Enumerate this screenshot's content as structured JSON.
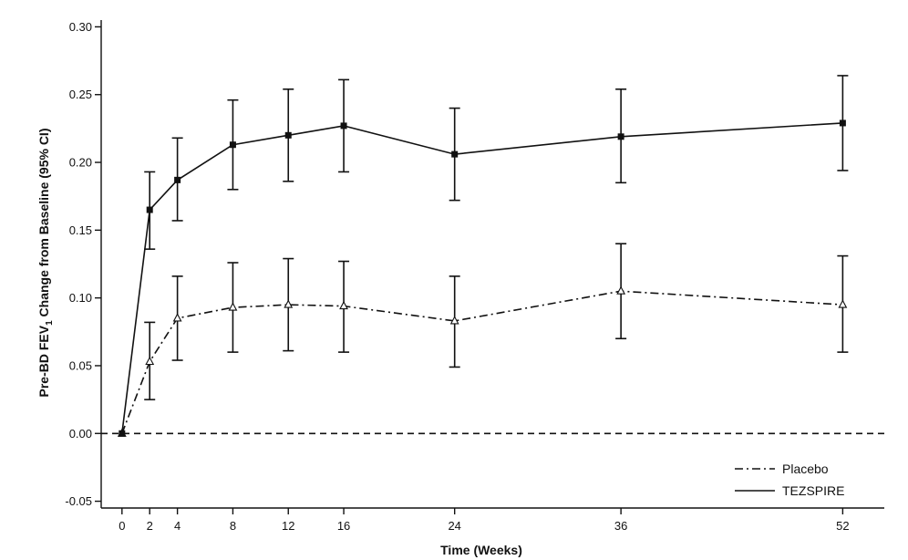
{
  "chart_data": {
    "type": "line",
    "xlabel": "Time (Weeks)",
    "ylabel_prefix": "Pre-BD FEV",
    "ylabel_sub": "1",
    "ylabel_suffix": " Change from Baseline (95% CI)",
    "x_ticks": [
      0,
      2,
      4,
      8,
      12,
      16,
      24,
      36,
      52
    ],
    "x_tick_labels": [
      "0",
      "2",
      "4",
      "8",
      "12",
      "16",
      "24",
      "36",
      "52"
    ],
    "y_ticks": [
      -0.05,
      0.0,
      0.05,
      0.1,
      0.15,
      0.2,
      0.25,
      0.3
    ],
    "y_tick_labels": [
      "-0.05",
      "0.00",
      "0.05",
      "0.10",
      "0.15",
      "0.20",
      "0.25",
      "0.30"
    ],
    "xlim": [
      -1.5,
      55
    ],
    "ylim": [
      -0.055,
      0.305
    ],
    "reference_line_y": 0.0,
    "legend_position": "bottom-right",
    "series": [
      {
        "name": "Placebo",
        "line_style": "dash-dot",
        "marker": "open-triangle",
        "x": [
          0,
          2,
          4,
          8,
          12,
          16,
          24,
          36,
          52
        ],
        "y": [
          0.0,
          0.053,
          0.085,
          0.093,
          0.095,
          0.094,
          0.083,
          0.105,
          0.095
        ],
        "ci_low": [
          null,
          0.025,
          0.054,
          0.06,
          0.061,
          0.06,
          0.049,
          0.07,
          0.06
        ],
        "ci_high": [
          null,
          0.082,
          0.116,
          0.126,
          0.129,
          0.127,
          0.116,
          0.14,
          0.131
        ]
      },
      {
        "name": "TEZSPIRE",
        "line_style": "solid",
        "marker": "filled-square",
        "x": [
          0,
          2,
          4,
          8,
          12,
          16,
          24,
          36,
          52
        ],
        "y": [
          0.0,
          0.165,
          0.187,
          0.213,
          0.22,
          0.227,
          0.206,
          0.219,
          0.229
        ],
        "ci_low": [
          null,
          0.136,
          0.157,
          0.18,
          0.186,
          0.193,
          0.172,
          0.185,
          0.194
        ],
        "ci_high": [
          null,
          0.193,
          0.218,
          0.246,
          0.254,
          0.261,
          0.24,
          0.254,
          0.264
        ]
      }
    ]
  }
}
